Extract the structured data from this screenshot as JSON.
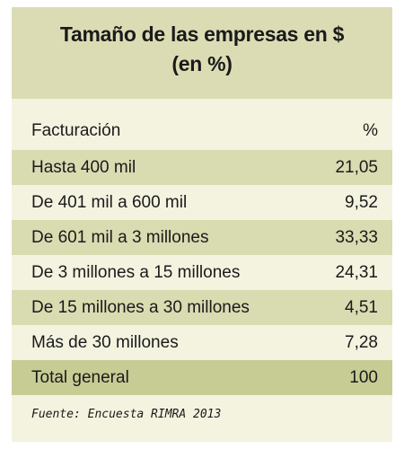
{
  "title": {
    "line1": "Tamaño de las empresas en $",
    "line2": "(en %)"
  },
  "table": {
    "header": {
      "label": "Facturación",
      "value": "%"
    },
    "rows": [
      {
        "label": "Hasta 400 mil",
        "value": "21,05"
      },
      {
        "label": "De 401 mil a 600 mil",
        "value": "9,52"
      },
      {
        "label": "De 601 mil a 3 millones",
        "value": "33,33"
      },
      {
        "label": "De 3 millones a 15 millones",
        "value": "24,31"
      },
      {
        "label": "De 15 millones a 30 millones",
        "value": "4,51"
      },
      {
        "label": "Más de 30 millones",
        "value": "7,28"
      }
    ],
    "total": {
      "label": "Total general",
      "value": "100"
    }
  },
  "source": "Fuente: Encuesta RIMRA 2013",
  "colors": {
    "background": "#f4f3e0",
    "title_band": "#dcdcb4",
    "shaded_row": "#d9dbb1",
    "total_row": "#c7cc95"
  },
  "chart_data": {
    "type": "table",
    "title": "Tamaño de las empresas en $ (en %)",
    "columns": [
      "Facturación",
      "%"
    ],
    "categories": [
      "Hasta 400 mil",
      "De 401 mil a 600 mil",
      "De 601 mil a 3 millones",
      "De 3 millones a 15 millones",
      "De 15 millones a 30 millones",
      "Más de 30 millones"
    ],
    "values": [
      21.05,
      9.52,
      33.33,
      24.31,
      4.51,
      7.28
    ],
    "total": 100
  }
}
